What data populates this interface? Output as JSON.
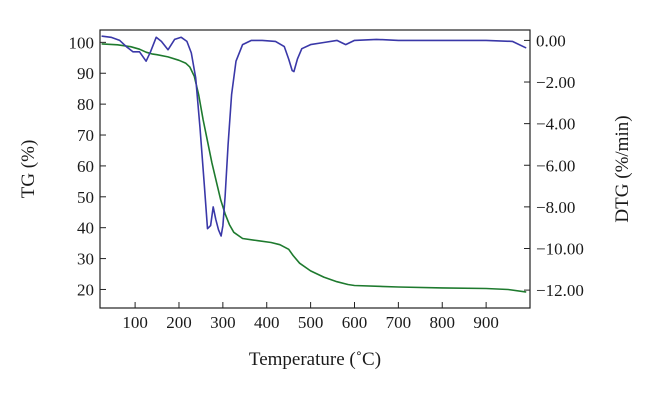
{
  "chart_data": {
    "type": "line",
    "title": "",
    "xlabel": "Temperature (˚C)",
    "ylabel": "TG (%)",
    "y2label": "DTG (%/min)",
    "xlim": [
      20,
      1000
    ],
    "ylim": [
      14,
      104
    ],
    "y2lim": [
      -12.86,
      0.5
    ],
    "x_ticks": [
      100,
      200,
      300,
      400,
      500,
      600,
      700,
      800,
      900
    ],
    "y_ticks": [
      20,
      30,
      40,
      50,
      60,
      70,
      80,
      90,
      100
    ],
    "y2_ticks": [
      0,
      -2,
      -4,
      -6,
      -8,
      -10,
      -12
    ],
    "y2_tick_labels": [
      "0.00",
      "−2.00",
      "−4.00",
      "−6.00",
      "−8.00",
      "−10.00",
      "−12.00"
    ],
    "grid": false,
    "legend": "none",
    "series": [
      {
        "axis": "left",
        "color": "#1e7a2e",
        "x": [
          25,
          60,
          90,
          110,
          125,
          140,
          150,
          175,
          200,
          215,
          225,
          235,
          245,
          255,
          265,
          275,
          285,
          295,
          305,
          315,
          325,
          345,
          380,
          410,
          430,
          450,
          460,
          475,
          500,
          530,
          560,
          585,
          600,
          700,
          800,
          900,
          950,
          990
        ],
        "y": [
          99.5,
          99.2,
          98.6,
          97.8,
          96.8,
          96.2,
          96.0,
          95.3,
          94.2,
          93.3,
          92.0,
          89.0,
          83.0,
          75.0,
          68.0,
          61.0,
          55.0,
          49.0,
          44.5,
          41.0,
          38.5,
          36.5,
          35.8,
          35.2,
          34.5,
          33.0,
          31.0,
          28.5,
          26.0,
          24.0,
          22.5,
          21.6,
          21.3,
          20.8,
          20.5,
          20.3,
          20.0,
          19.2
        ]
      },
      {
        "axis": "right",
        "color": "#3a38a8",
        "x": [
          25,
          45,
          65,
          80,
          95,
          110,
          125,
          135,
          148,
          160,
          175,
          190,
          205,
          218,
          228,
          238,
          248,
          258,
          265,
          272,
          278,
          284,
          290,
          296,
          300,
          305,
          312,
          320,
          330,
          345,
          365,
          390,
          420,
          440,
          450,
          458,
          462,
          470,
          480,
          500,
          530,
          560,
          580,
          600,
          650,
          700,
          800,
          900,
          960,
          990
        ],
        "y": [
          0.2,
          0.15,
          0.0,
          -0.3,
          -0.55,
          -0.55,
          -1.0,
          -0.55,
          0.15,
          -0.05,
          -0.45,
          0.05,
          0.15,
          -0.05,
          -0.6,
          -1.8,
          -4.2,
          -7.0,
          -9.05,
          -8.9,
          -8.0,
          -8.6,
          -9.1,
          -9.4,
          -8.9,
          -7.5,
          -5.0,
          -2.6,
          -1.0,
          -0.2,
          0.0,
          0.0,
          -0.05,
          -0.3,
          -0.9,
          -1.45,
          -1.5,
          -0.9,
          -0.4,
          -0.2,
          -0.1,
          0.0,
          -0.2,
          0.0,
          0.05,
          0.0,
          0.0,
          0.0,
          -0.05,
          -0.35
        ]
      }
    ]
  }
}
